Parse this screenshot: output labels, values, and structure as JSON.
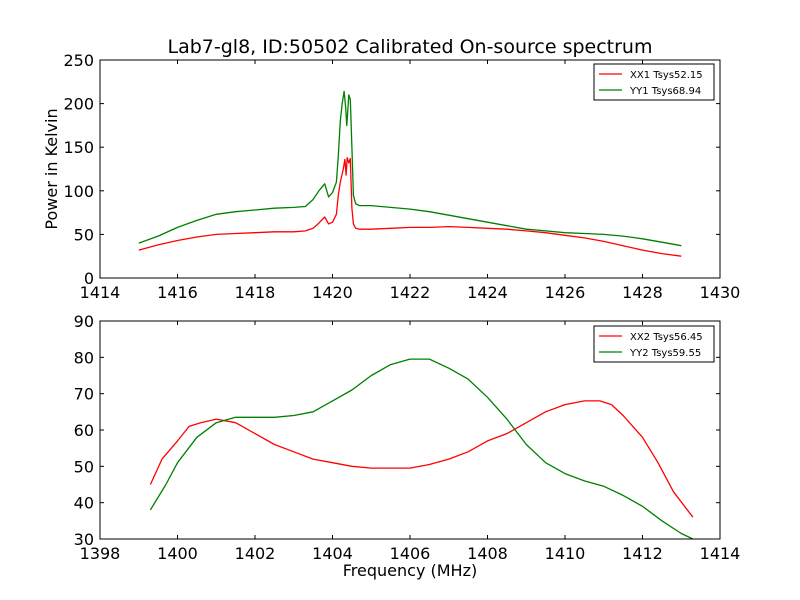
{
  "chart_data": [
    {
      "type": "line",
      "title": "Lab7-gl8, ID:50502 Calibrated On-source spectrum",
      "xlabel": "",
      "ylabel": "Power in Kelvin",
      "xlim": [
        1414,
        1430
      ],
      "ylim": [
        0,
        250
      ],
      "xticks": [
        1414,
        1416,
        1418,
        1420,
        1422,
        1424,
        1426,
        1428,
        1430
      ],
      "yticks": [
        0,
        50,
        100,
        150,
        200,
        250
      ],
      "grid": false,
      "legend": "top-right",
      "series": [
        {
          "name": "XX1 Tsys52.15",
          "color": "#ff0000",
          "x": [
            1415.0,
            1415.5,
            1416.0,
            1416.5,
            1417.0,
            1417.5,
            1418.0,
            1418.5,
            1419.0,
            1419.3,
            1419.5,
            1419.65,
            1419.8,
            1419.9,
            1420.0,
            1420.1,
            1420.15,
            1420.2,
            1420.28,
            1420.32,
            1420.35,
            1420.38,
            1420.42,
            1420.46,
            1420.5,
            1420.54,
            1420.6,
            1420.7,
            1421.0,
            1421.5,
            1422.0,
            1422.5,
            1423.0,
            1423.5,
            1424.0,
            1424.5,
            1425.0,
            1425.5,
            1426.0,
            1426.5,
            1427.0,
            1427.5,
            1428.0,
            1428.5,
            1429.0
          ],
          "y": [
            32,
            38,
            43,
            47,
            50,
            51,
            52,
            53,
            53,
            54,
            57,
            63,
            70,
            62,
            64,
            73,
            95,
            110,
            125,
            136,
            118,
            138,
            132,
            137,
            80,
            62,
            57,
            56,
            56,
            57,
            58,
            58,
            59,
            58,
            57,
            56,
            54,
            52,
            49,
            46,
            42,
            37,
            32,
            28,
            25
          ]
        },
        {
          "name": "YY1 Tsys68.94",
          "color": "#008000",
          "x": [
            1415.0,
            1415.5,
            1416.0,
            1416.5,
            1417.0,
            1417.5,
            1418.0,
            1418.5,
            1419.0,
            1419.3,
            1419.5,
            1419.65,
            1419.8,
            1419.9,
            1420.0,
            1420.1,
            1420.15,
            1420.2,
            1420.25,
            1420.3,
            1420.34,
            1420.37,
            1420.42,
            1420.46,
            1420.5,
            1420.54,
            1420.6,
            1420.7,
            1421.0,
            1421.5,
            1422.0,
            1422.5,
            1423.0,
            1423.5,
            1424.0,
            1424.5,
            1425.0,
            1425.5,
            1426.0,
            1426.5,
            1427.0,
            1427.5,
            1428.0,
            1428.5,
            1429.0
          ],
          "y": [
            40,
            48,
            58,
            66,
            73,
            76,
            78,
            80,
            81,
            82,
            90,
            100,
            108,
            93,
            98,
            110,
            140,
            180,
            200,
            214,
            195,
            175,
            210,
            205,
            150,
            95,
            85,
            83,
            83,
            81,
            79,
            76,
            72,
            68,
            64,
            60,
            56,
            54,
            52,
            51,
            50,
            48,
            45,
            41,
            37
          ]
        }
      ]
    },
    {
      "type": "line",
      "title": "",
      "xlabel": "Frequency (MHz)",
      "ylabel": "",
      "xlim": [
        1398,
        1414
      ],
      "ylim": [
        30,
        90
      ],
      "xticks": [
        1398,
        1400,
        1402,
        1404,
        1406,
        1408,
        1410,
        1412,
        1414
      ],
      "yticks": [
        30,
        40,
        50,
        60,
        70,
        80,
        90
      ],
      "grid": false,
      "legend": "top-right",
      "series": [
        {
          "name": "XX2 Tsys56.45",
          "color": "#ff0000",
          "x": [
            1399.3,
            1399.6,
            1400.0,
            1400.3,
            1400.6,
            1401.0,
            1401.5,
            1402.0,
            1402.5,
            1403.0,
            1403.5,
            1404.0,
            1404.5,
            1405.0,
            1405.5,
            1406.0,
            1406.5,
            1407.0,
            1407.5,
            1408.0,
            1408.5,
            1409.0,
            1409.5,
            1410.0,
            1410.5,
            1410.9,
            1411.2,
            1411.5,
            1412.0,
            1412.4,
            1412.8,
            1413.3
          ],
          "y": [
            45,
            52,
            57,
            61,
            62,
            63,
            62,
            59,
            56,
            54,
            52,
            51,
            50,
            49.5,
            49.5,
            49.5,
            50.5,
            52,
            54,
            57,
            59,
            62,
            65,
            67,
            68,
            68,
            67,
            64,
            58,
            51,
            43,
            36
          ]
        },
        {
          "name": "YY2 Tsys59.55",
          "color": "#008000",
          "x": [
            1399.3,
            1399.7,
            1400.0,
            1400.5,
            1401.0,
            1401.5,
            1402.0,
            1402.5,
            1403.0,
            1403.5,
            1404.0,
            1404.5,
            1405.0,
            1405.5,
            1406.0,
            1406.5,
            1407.0,
            1407.5,
            1408.0,
            1408.5,
            1409.0,
            1409.5,
            1410.0,
            1410.5,
            1411.0,
            1411.5,
            1412.0,
            1412.5,
            1413.0,
            1413.3
          ],
          "y": [
            38,
            45,
            51,
            58,
            62,
            63.5,
            63.5,
            63.5,
            64,
            65,
            68,
            71,
            75,
            78,
            79.5,
            79.5,
            77,
            74,
            69,
            63,
            56,
            51,
            48,
            46,
            44.5,
            42,
            39,
            35,
            31.5,
            30
          ]
        }
      ]
    }
  ]
}
